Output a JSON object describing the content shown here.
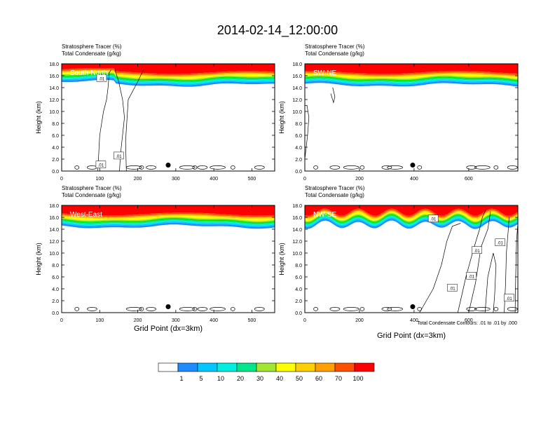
{
  "title": "2014-02-14_12:00:00",
  "panel_labels": {
    "variable_1": "Stratosphere Tracer",
    "variable_1_units": "(%)",
    "variable_2": "Total Condensate",
    "variable_2_units": "(g/kg)"
  },
  "xlabel": "Grid Point (dx=3km)",
  "ylabel": "Height (km)",
  "contour_note": "Total Condensate Contours: .01 to .01 by .000",
  "contour_label_text": ".01",
  "colorbar": {
    "colors": [
      "#ffffff",
      "#1e8cff",
      "#00c8ff",
      "#00f0e0",
      "#00e68c",
      "#00e600",
      "#a0e632",
      "#ffff00",
      "#ffd000",
      "#ffa000",
      "#ff5000",
      "#ff0000"
    ],
    "labels": [
      "1",
      "5",
      "10",
      "20",
      "30",
      "40",
      "50",
      "60",
      "70",
      "100"
    ]
  },
  "chart_data": [
    {
      "type": "heatmap",
      "name": "South-North",
      "label": "South-North",
      "xlim": [
        0,
        560
      ],
      "xticks": [
        "0",
        "100",
        "200",
        "300",
        "400",
        "500"
      ],
      "xtick_values": [
        0,
        100,
        200,
        300,
        400,
        500
      ],
      "ylim": [
        0,
        18
      ],
      "yticks": [
        "0.0",
        "2.0",
        "4.0",
        "6.0",
        "8.0",
        "10.0",
        "12.0",
        "14.0",
        "16.0",
        "18.0"
      ],
      "ytick_values": [
        0,
        2,
        4,
        6,
        8,
        10,
        12,
        14,
        16,
        18
      ],
      "marker": {
        "x": 280,
        "y": 1.0
      },
      "contour_labels": [
        {
          "x": 105,
          "y": 15.6
        },
        {
          "x": 150,
          "y": 2.6
        },
        {
          "x": 103,
          "y": 1.1
        }
      ]
    },
    {
      "type": "heatmap",
      "name": "SW-NE",
      "label": "SW-NE",
      "xlim": [
        0,
        780
      ],
      "xticks": [
        "0",
        "200",
        "400",
        "600"
      ],
      "xtick_values": [
        0,
        200,
        400,
        600
      ],
      "ylim": [
        0,
        18
      ],
      "yticks": [
        "0.0",
        "2.0",
        "4.0",
        "6.0",
        "8.0",
        "10.0",
        "12.0",
        "14.0",
        "16.0",
        "18.0"
      ],
      "ytick_values": [
        0,
        2,
        4,
        6,
        8,
        10,
        12,
        14,
        16,
        18
      ],
      "marker": {
        "x": 395,
        "y": 1.0
      },
      "contour_labels": []
    },
    {
      "type": "heatmap",
      "name": "West-East",
      "label": "West-East",
      "xlim": [
        0,
        560
      ],
      "xticks": [
        "0",
        "100",
        "200",
        "300",
        "400",
        "500"
      ],
      "xtick_values": [
        0,
        100,
        200,
        300,
        400,
        500
      ],
      "ylim": [
        0,
        18
      ],
      "yticks": [
        "0.0",
        "2.0",
        "4.0",
        "6.0",
        "8.0",
        "10.0",
        "12.0",
        "14.0",
        "16.0",
        "18.0"
      ],
      "ytick_values": [
        0,
        2,
        4,
        6,
        8,
        10,
        12,
        14,
        16,
        18
      ],
      "marker": {
        "x": 280,
        "y": 1.0
      },
      "contour_labels": []
    },
    {
      "type": "heatmap",
      "name": "NW-SE",
      "label": "NW-SE",
      "xlim": [
        0,
        780
      ],
      "xticks": [
        "0",
        "200",
        "400",
        "600"
      ],
      "xtick_values": [
        0,
        200,
        400,
        600
      ],
      "ylim": [
        0,
        18
      ],
      "yticks": [
        "0.0",
        "2.0",
        "4.0",
        "6.0",
        "8.0",
        "10.0",
        "12.0",
        "14.0",
        "16.0",
        "18.0"
      ],
      "ytick_values": [
        0,
        2,
        4,
        6,
        8,
        10,
        12,
        14,
        16,
        18
      ],
      "marker": {
        "x": 395,
        "y": 1.0
      },
      "contour_labels": [
        {
          "x": 470,
          "y": 15.8
        },
        {
          "x": 630,
          "y": 10.5
        },
        {
          "x": 715,
          "y": 11.8
        },
        {
          "x": 610,
          "y": 6.2
        },
        {
          "x": 540,
          "y": 4.2
        },
        {
          "x": 748,
          "y": 2.5
        }
      ]
    }
  ]
}
